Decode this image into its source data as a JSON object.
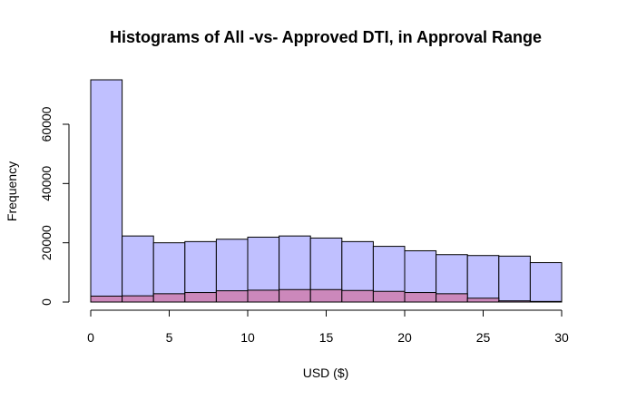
{
  "chart_data": {
    "type": "bar",
    "title": "Histograms of All -vs- Approved DTI, in Approval Range",
    "xlabel": "USD ($)",
    "ylabel": "Frequency",
    "xlim": [
      0,
      30
    ],
    "ylim": [
      0,
      75000
    ],
    "bin_edges": [
      0,
      2,
      4,
      6,
      8,
      10,
      12,
      14,
      16,
      18,
      20,
      22,
      24,
      26,
      28,
      30
    ],
    "x_ticks": [
      0,
      5,
      10,
      15,
      20,
      25,
      30
    ],
    "y_ticks": [
      0,
      20000,
      40000,
      60000
    ],
    "grid": false,
    "legend": "none",
    "series": [
      {
        "values": [
          75000,
          22300,
          20000,
          20400,
          21200,
          21900,
          22300,
          21600,
          20400,
          18800,
          17300,
          16000,
          15700,
          15500,
          13300
        ],
        "color": "#c0c0ff"
      },
      {
        "values": [
          2000,
          2100,
          2800,
          3200,
          3800,
          4000,
          4200,
          4200,
          3900,
          3600,
          3200,
          2800,
          1300,
          400,
          200
        ],
        "color": "#cc88bb"
      }
    ]
  }
}
